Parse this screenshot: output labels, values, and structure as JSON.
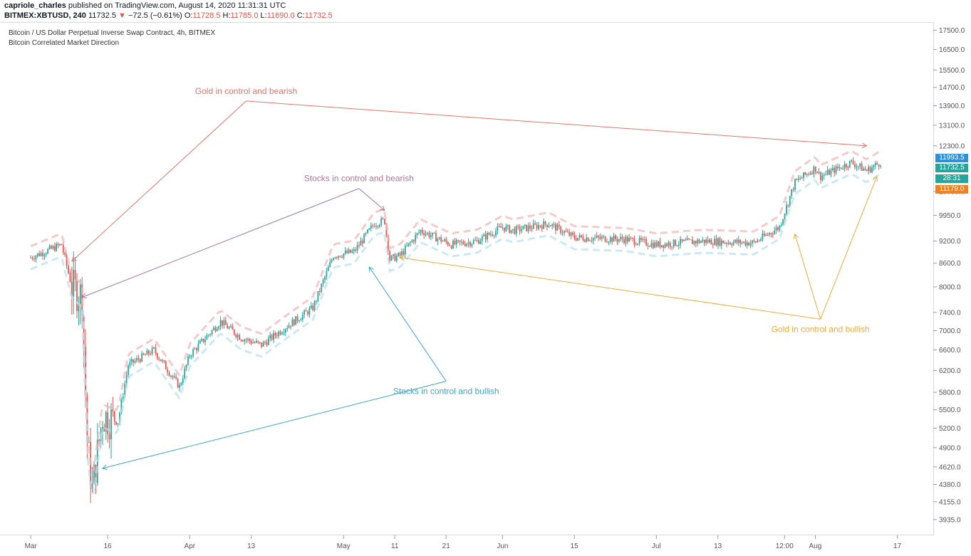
{
  "header": {
    "author": "capriole_charles",
    "published": "published on TradingView.com, August 14, 2020 11:31:31 UTC",
    "symbol": "BITMEX:XBTUSD, 240",
    "last": "11732.5",
    "change": "−72.5 (−0.61%)",
    "o_label": "O:",
    "o": "11728.5",
    "h_label": "H:",
    "h": "11785.0",
    "l_label": "L:",
    "l": "11690.0",
    "c_label": "C:",
    "c": "11732.5"
  },
  "chart_title": "Bitcoin / US Dollar Perpetual Inverse Swap Contract, 4h, BITMEX",
  "indicator": "Bitcoin Correlated Market Direction",
  "colors": {
    "gold_bearish": "#e2756a",
    "stocks_bearish": "#a8788f",
    "stocks_bullish": "#3aa5c9",
    "gold_bullish": "#f5a93a",
    "candle_up": "#26a69a",
    "candle_down": "#ef5350"
  },
  "price_tags": [
    {
      "value": "11993.5",
      "color": "#2f8fd8"
    },
    {
      "value": "11732.5",
      "color": "#26a69a"
    },
    {
      "value": "28:31",
      "color": "#26a69a"
    },
    {
      "value": "11179.0",
      "color": "#f0811e"
    }
  ],
  "chart_data": {
    "type": "candlestick",
    "y_scale": "log",
    "ylim": [
      3750,
      17900
    ],
    "y_ticks": [
      "17500.0",
      "16500.0",
      "15500.0",
      "14700.0",
      "13900.0",
      "13100.0",
      "12300.0",
      "10700.0",
      "9950.0",
      "9200.0",
      "8600.0",
      "8000.0",
      "7400.0",
      "7000.0",
      "6600.0",
      "6200.0",
      "5800.0",
      "5500.0",
      "5200.0",
      "4900.0",
      "4620.0",
      "4380.0",
      "4155.0",
      "3935.0"
    ],
    "x_ticks": [
      "Mar",
      "16",
      "Apr",
      "13",
      "May",
      "11",
      "21",
      "Jun",
      "15",
      "Jul",
      "13",
      "12:00",
      "Aug",
      "17"
    ],
    "price_path": [
      [
        "2020-03-01",
        8750
      ],
      [
        "2020-03-07",
        9100
      ],
      [
        "2020-03-09",
        8000
      ],
      [
        "2020-03-11",
        7800
      ],
      [
        "2020-03-12",
        5000
      ],
      [
        "2020-03-13",
        4300
      ],
      [
        "2020-03-15",
        5400
      ],
      [
        "2020-03-18",
        5300
      ],
      [
        "2020-03-20",
        6300
      ],
      [
        "2020-03-25",
        6600
      ],
      [
        "2020-03-30",
        5900
      ],
      [
        "2020-04-01",
        6500
      ],
      [
        "2020-04-07",
        7200
      ],
      [
        "2020-04-11",
        6850
      ],
      [
        "2020-04-15",
        6700
      ],
      [
        "2020-04-20",
        7100
      ],
      [
        "2020-04-25",
        7500
      ],
      [
        "2020-04-29",
        8800
      ],
      [
        "2020-05-03",
        8900
      ],
      [
        "2020-05-07",
        9700
      ],
      [
        "2020-05-09",
        9800
      ],
      [
        "2020-05-10",
        8700
      ],
      [
        "2020-05-12",
        8800
      ],
      [
        "2020-05-16",
        9500
      ],
      [
        "2020-05-22",
        9100
      ],
      [
        "2020-05-27",
        9200
      ],
      [
        "2020-06-01",
        9600
      ],
      [
        "2020-06-03",
        9500
      ],
      [
        "2020-06-10",
        9700
      ],
      [
        "2020-06-15",
        9300
      ],
      [
        "2020-06-25",
        9250
      ],
      [
        "2020-07-01",
        9100
      ],
      [
        "2020-07-10",
        9200
      ],
      [
        "2020-07-20",
        9150
      ],
      [
        "2020-07-25",
        9600
      ],
      [
        "2020-07-28",
        11000
      ],
      [
        "2020-08-01",
        11500
      ],
      [
        "2020-08-02",
        11200
      ],
      [
        "2020-08-08",
        11700
      ],
      [
        "2020-08-11",
        11400
      ],
      [
        "2020-08-14",
        11732.5
      ]
    ],
    "annotations": [
      {
        "label": "Gold in control and bearish",
        "color_key": "gold_bearish",
        "hub": [
          "2020-04-12",
          14100
        ],
        "targets": [
          [
            "2020-03-09",
            8650
          ],
          [
            "2020-08-11",
            12300
          ]
        ]
      },
      {
        "label": "Stocks in control and bearish",
        "color_key": "stocks_bearish",
        "hub": [
          "2020-05-04",
          10800
        ],
        "targets": [
          [
            "2020-03-11",
            7750
          ],
          [
            "2020-05-09",
            10100
          ]
        ]
      },
      {
        "label": "Stocks in control and bullish",
        "color_key": "stocks_bullish",
        "hub": [
          "2020-05-21",
          6000
        ],
        "targets": [
          [
            "2020-03-15",
            4600
          ],
          [
            "2020-05-06",
            8500
          ]
        ]
      },
      {
        "label": "Gold in control and bullish",
        "color_key": "gold_bullish",
        "hub": [
          "2020-08-02",
          7250
        ],
        "targets": [
          [
            "2020-05-12",
            8750
          ],
          [
            "2020-07-28",
            9400
          ],
          [
            "2020-08-13",
            11200
          ]
        ]
      }
    ]
  }
}
